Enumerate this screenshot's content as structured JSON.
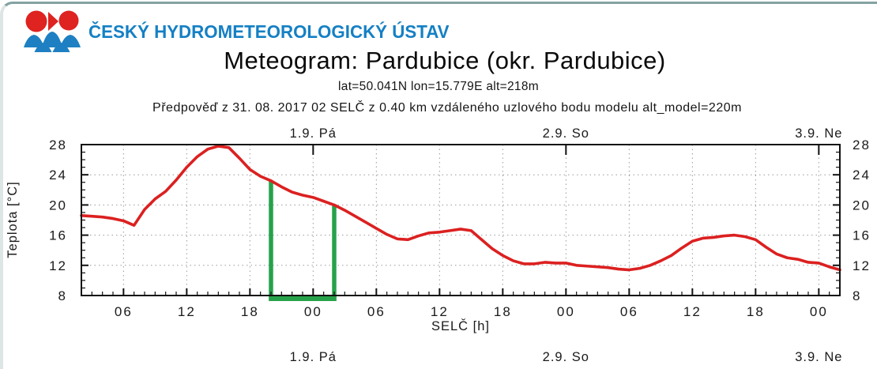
{
  "window": {
    "top_bar_color": "#84a2a2",
    "left_edge_color": "#dde5e5"
  },
  "header": {
    "institute": "ČESKÝ HYDROMETEOROLOGICKÝ ÚSTAV",
    "institute_color": "#1580c4",
    "logo_colors": {
      "red": "#de2320",
      "blue": "#1e80c2"
    },
    "title": "Meteogram: Pardubice (okr. Pardubice)",
    "location_line": "lat=50.041N lon=15.779E alt=218m",
    "forecast_line": "Předpověď z 31. 08. 2017 02 SELČ z 0.40 km vzdáleného uzlového bodu modelu alt_model=220m"
  },
  "chart_data": {
    "type": "line",
    "title": "Meteogram: Pardubice (okr. Pardubice)",
    "xlabel": "SELČ [h]",
    "ylabel": "Teplota [°C]",
    "x_start_hour": 2,
    "x_end_hour": 74,
    "ylim": [
      8,
      28
    ],
    "y_major_ticks": [
      28,
      24,
      20,
      16,
      12,
      8
    ],
    "y_minor_tick_step": 1,
    "x_minor_tick_step_h": 1,
    "grid": true,
    "grid_color": "#9a9a9a",
    "axis_color": "#111111",
    "x_major_ticks": [
      {
        "hour": 6,
        "label": "06"
      },
      {
        "hour": 12,
        "label": "12"
      },
      {
        "hour": 18,
        "label": "18"
      },
      {
        "hour": 24,
        "label": "00"
      },
      {
        "hour": 30,
        "label": "06"
      },
      {
        "hour": 36,
        "label": "12"
      },
      {
        "hour": 42,
        "label": "18"
      },
      {
        "hour": 48,
        "label": "00"
      },
      {
        "hour": 54,
        "label": "06"
      },
      {
        "hour": 60,
        "label": "12"
      },
      {
        "hour": 66,
        "label": "18"
      },
      {
        "hour": 72,
        "label": "00"
      }
    ],
    "day_labels": [
      {
        "label": "1.9. Pá",
        "hour": 24
      },
      {
        "label": "2.9. So",
        "hour": 48
      },
      {
        "label": "3.9. Ne",
        "hour": 72
      }
    ],
    "series": [
      {
        "name": "Teplota",
        "color": "#dc2020",
        "values": [
          18.6,
          18.5,
          18.4,
          18.2,
          17.9,
          17.3,
          19.4,
          20.8,
          21.8,
          23.3,
          25.0,
          26.4,
          27.4,
          27.8,
          27.6,
          26.2,
          24.7,
          23.8,
          23.2,
          22.4,
          21.7,
          21.3,
          21.0,
          20.5,
          20.0,
          19.3,
          18.5,
          17.7,
          16.9,
          16.1,
          15.5,
          15.4,
          15.9,
          16.3,
          16.4,
          16.6,
          16.8,
          16.6,
          15.4,
          14.2,
          13.3,
          12.6,
          12.2,
          12.2,
          12.4,
          12.3,
          12.3,
          12.0,
          11.9,
          11.8,
          11.7,
          11.5,
          11.4,
          11.6,
          12.0,
          12.6,
          13.3,
          14.3,
          15.2,
          15.6,
          15.7,
          15.9,
          16.0,
          15.8,
          15.4,
          14.4,
          13.5,
          13.0,
          12.8,
          12.4,
          12.3,
          11.8,
          11.4
        ]
      }
    ],
    "highlight_window": {
      "start_hour": 20,
      "end_hour": 26,
      "color": "#27a24a"
    }
  }
}
